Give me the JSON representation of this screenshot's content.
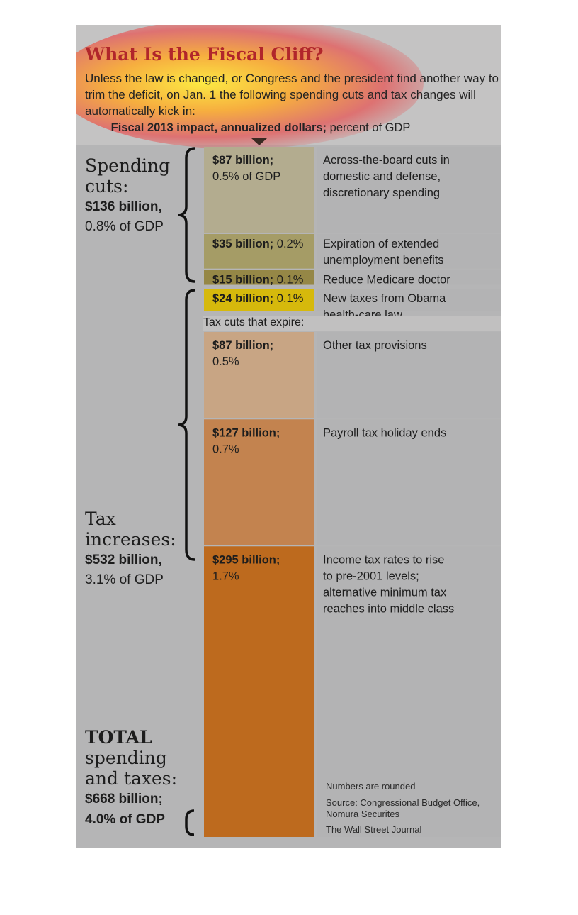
{
  "header": {
    "title": "What Is the Fiscal Cliff?",
    "intro": "Unless the law is changed, or Congress and the president find another way to trim the deficit, on Jan. 1 the following spending cuts and tax changes will automatically kick in:",
    "impact_bold": "Fiscal 2013 impact, annualized dollars;",
    "impact_rest": " percent of GDP"
  },
  "groups": {
    "spending": {
      "line1": "Spending",
      "line2": "cuts:",
      "amount": "$136 billion,",
      "pct": "0.8% of GDP"
    },
    "tax": {
      "line1": "Tax",
      "line2": "increases:",
      "amount": "$532 billion,",
      "pct": "3.1% of GDP"
    },
    "total": {
      "line1": "TOTAL",
      "line2": "spending",
      "line3": "and taxes:",
      "amount": "$668 billion;",
      "pct": "4.0% of GDP"
    }
  },
  "section_label": "Tax cuts that expire:",
  "notes": {
    "rounded": "Numbers are rounded",
    "source": "Source: Congressional Budget Office, Nomura Securites",
    "credit": "The Wall Street Journal"
  },
  "colors": {
    "spending_1": "#b3ac8f",
    "spending_2": "#a59c66",
    "spending_3": "#958746",
    "health": "#d6b90c",
    "tax_1": "#c8a584",
    "tax_2": "#c3834f",
    "tax_3": "#bd6a1e",
    "title": "#b1262b"
  },
  "chart_data": {
    "type": "bar",
    "stacked": true,
    "unit": "billion",
    "items": [
      {
        "group": "Spending cuts",
        "value": 87,
        "value_label": "$87 billion;",
        "pct_label": "0.5% of GDP",
        "description": "Across-the-board cuts in domestic and defense, discretionary spending",
        "color": "#b3ac8f"
      },
      {
        "group": "Spending cuts",
        "value": 35,
        "value_label": "$35 billion;",
        "pct_label": "0.2%",
        "description": "Expiration of extended unemployment benefits",
        "color": "#a59c66"
      },
      {
        "group": "Spending cuts",
        "value": 15,
        "value_label": "$15 billion;",
        "pct_label": "0.1%",
        "description": "Reduce Medicare doctor rates",
        "color": "#958746"
      },
      {
        "group": "Tax increases",
        "value": 24,
        "value_label": "$24 billion;",
        "pct_label": "0.1%",
        "description": "New taxes from Obama health-care law",
        "color": "#d6b90c"
      },
      {
        "group": "Tax increases",
        "value": 87,
        "value_label": "$87 billion;",
        "pct_label": "0.5%",
        "description": "Other tax provisions",
        "color": "#c8a584"
      },
      {
        "group": "Tax increases",
        "value": 127,
        "value_label": "$127 billion;",
        "pct_label": "0.7%",
        "description": "Payroll tax holiday ends",
        "color": "#c3834f"
      },
      {
        "group": "Tax increases",
        "value": 295,
        "value_label": "$295 billion;",
        "pct_label": "1.7%",
        "description": "Income tax rates to rise to pre-2001 levels; alternative minimum tax reaches into middle class",
        "color": "#bd6a1e"
      }
    ]
  }
}
